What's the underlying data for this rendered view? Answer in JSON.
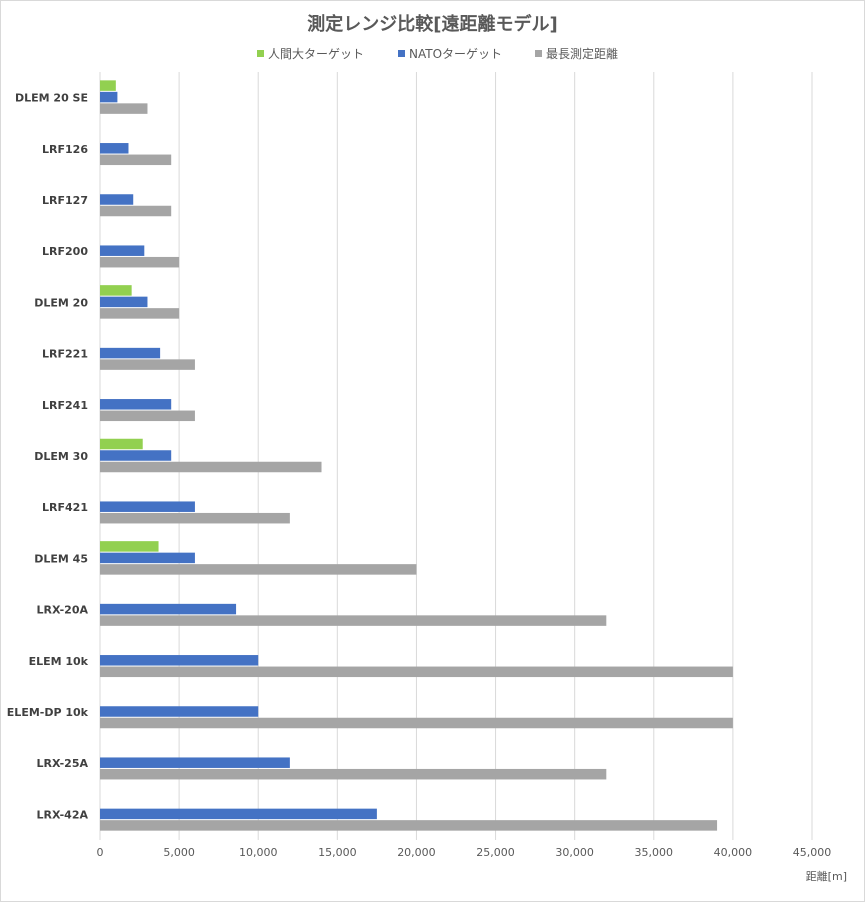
{
  "title": "測定レンジ比較[遠距離モデル]",
  "unit_label": "距離[m]",
  "chart_data": {
    "type": "bar",
    "orientation": "horizontal",
    "title": "測定レンジ比較[遠距離モデル]",
    "xlabel": "距離[m]",
    "ylabel": "",
    "xlim": [
      0,
      45000
    ],
    "xticks": [
      "0",
      "5,000",
      "10,000",
      "15,000",
      "20,000",
      "25,000",
      "30,000",
      "35,000",
      "40,000",
      "45,000"
    ],
    "grid": true,
    "legend_position": "top",
    "categories": [
      "DLEM 20 SE",
      "LRF126",
      "LRF127",
      "LRF200",
      "DLEM 20",
      "LRF221",
      "LRF241",
      "DLEM 30",
      "LRF421",
      "DLEM 45",
      "LRX-20A",
      "ELEM 10k",
      "ELEM-DP 10k",
      "LRX-25A",
      "LRX-42A"
    ],
    "series": [
      {
        "name": "人間大ターゲット",
        "color": "#92d050",
        "values": [
          1000,
          null,
          null,
          null,
          2000,
          null,
          null,
          2700,
          null,
          3700,
          null,
          null,
          null,
          null,
          null
        ]
      },
      {
        "name": "NATOターゲット",
        "color": "#4472c4",
        "values": [
          1100,
          1800,
          2100,
          2800,
          3000,
          3800,
          4500,
          4500,
          6000,
          6000,
          8600,
          10000,
          10000,
          12000,
          17500
        ]
      },
      {
        "name": "最長測定距離",
        "color": "#a5a5a5",
        "values": [
          3000,
          4500,
          4500,
          5000,
          5000,
          6000,
          6000,
          14000,
          12000,
          20000,
          32000,
          40000,
          40000,
          32000,
          39000
        ]
      }
    ]
  }
}
